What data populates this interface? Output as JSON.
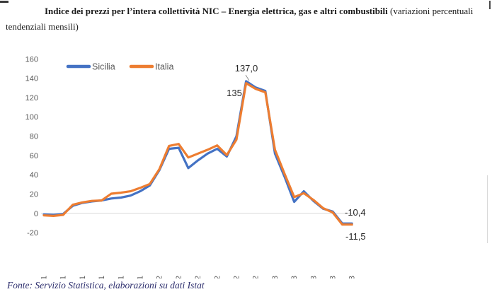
{
  "title": {
    "bold_part": "Indice dei prezzi per l’intera collettività NIC – Energia elettrica, gas e altri combustibili",
    "subtitle_line1": "(variazioni percentuali",
    "subtitle_line2": "tendenziali mensili)"
  },
  "footer": {
    "text": "Fonte: Servizio Statistica, elaborazioni su dati Istat"
  },
  "colors": {
    "sicilia_line": "#4472C4",
    "italia_line": "#ED7D31",
    "axis_labels": "#595959",
    "zero_gridline": "#d9d9d9",
    "annotation_text": "#262626",
    "footer_text": "#2e2f6e"
  },
  "chart_data": {
    "type": "line",
    "title": "",
    "xlabel": "",
    "ylabel": "",
    "ylim": [
      -20,
      160
    ],
    "yticks": [
      160,
      140,
      120,
      100,
      80,
      60,
      40,
      20,
      0,
      -20
    ],
    "grid": "zero-line-only",
    "legend_position": "top",
    "categories": [
      "Gen-2021",
      "Feb-2021",
      "Mar-2021",
      "Apr-2021",
      "Mag-2021",
      "Giu-2021",
      "Lug-2021",
      "Ago-2021",
      "Set-2021",
      "Ott-2021",
      "Nov-2021",
      "Dic-2021",
      "Gen-2022",
      "Feb-2022",
      "Mar-2022",
      "Apr-2022",
      "Mag-2022",
      "Giu-2022",
      "Lug-2022",
      "Ago-2022",
      "Set-2022",
      "Ott-2022",
      "Nov-2022",
      "Dic-2022",
      "Gen-2023",
      "Feb-2023",
      "Mar-2023",
      "Apr-2023",
      "Mag-2023",
      "Giu-2023",
      "Lug-2023",
      "Ago-2023",
      "Set-2023"
    ],
    "xtick_labels": [
      "Gen-2021",
      "Mar-2021",
      "Mag-2021",
      "Lug-2021",
      "Set-2021",
      "Nov-2021",
      "Gen-2022",
      "Mar-2022",
      "Mag-2022",
      "Lug-2022",
      "Set-2022",
      "Nov-2022",
      "Gen-2023",
      "Mar-2023",
      "Mag-2023",
      "Lug-2023",
      "Set-2023"
    ],
    "series": [
      {
        "name": "Sicilia",
        "color": "#4472C4",
        "values": [
          -1,
          -1.5,
          -0.5,
          8,
          11,
          12.5,
          13.5,
          15.5,
          16.5,
          18.5,
          23,
          29,
          45,
          67,
          68,
          47,
          55,
          62,
          67,
          59,
          80,
          137,
          130.5,
          127,
          62,
          38,
          12,
          23,
          13,
          5,
          2,
          -10.4,
          -10.4
        ]
      },
      {
        "name": "Italia",
        "color": "#ED7D31",
        "values": [
          -2,
          -2.5,
          -1.5,
          9,
          11.5,
          13,
          13.5,
          20.5,
          21.5,
          23,
          26.5,
          30.5,
          46,
          70,
          72,
          58,
          62,
          66,
          70.5,
          60.5,
          76.5,
          135,
          129,
          125.5,
          66,
          41,
          17,
          21,
          14,
          5.5,
          1,
          -11.5,
          -11.5
        ]
      }
    ],
    "annotations": [
      {
        "text": "137,0",
        "series": "Sicilia",
        "category": "Ott-2022"
      },
      {
        "text": "135",
        "series": "Italia",
        "category": "Ott-2022"
      },
      {
        "text": "-10,4",
        "series": "Sicilia",
        "category": "Set-2023"
      },
      {
        "text": "-11,5",
        "series": "Italia",
        "category": "Set-2023"
      }
    ]
  }
}
